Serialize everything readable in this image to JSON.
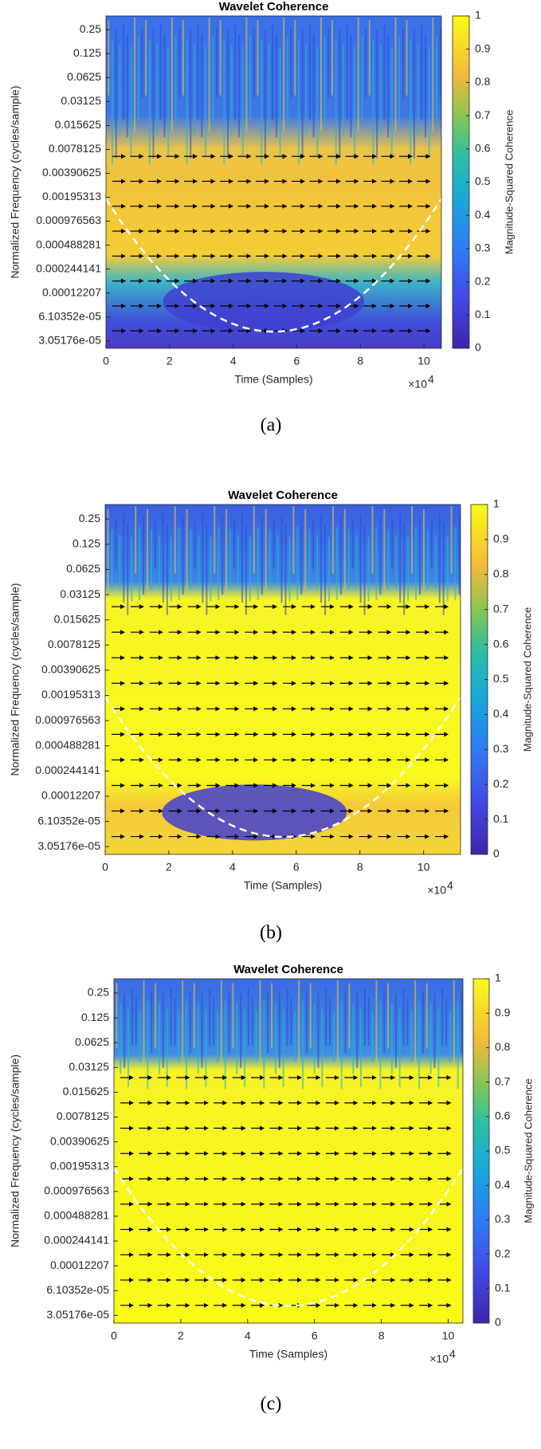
{
  "chart_data": [
    {
      "type": "heatmap",
      "title": "Wavelet Coherence",
      "caption": "(a)",
      "x_label": "Time (Samples)",
      "y_label": "Normalized Frequency  (cycles/sample)",
      "x_exponent_base": "×10",
      "x_exponent": 4,
      "xlim": [
        0,
        10.55
      ],
      "xticks": [
        0,
        2,
        4,
        6,
        8,
        10
      ],
      "y_scale": "log",
      "ylim": [
        2.46e-05,
        0.373
      ],
      "yticks": [
        0.25,
        0.125,
        0.0625,
        0.03125,
        0.015625,
        0.0078125,
        0.00390625,
        0.00195313,
        0.000976563,
        0.000488281,
        0.000244141,
        0.00012207,
        {
          "value": 6.10352e-05,
          "label": "6.10352e-05"
        },
        {
          "value": 3.05176e-05,
          "label": "3.05176e-05"
        }
      ],
      "colorbar": {
        "label": "Magnitude-Squared Coherence",
        "lim": [
          0,
          1
        ],
        "ticks": [
          0,
          0.1,
          0.2,
          0.3,
          0.4,
          0.5,
          0.6,
          0.7,
          0.8,
          0.9,
          1
        ]
      }
    },
    {
      "type": "heatmap",
      "title": "Wavelet Coherence",
      "caption": "(b)",
      "x_label": "Time (Samples)",
      "y_label": "Normalized Frequency  (cycles/sample)",
      "x_exponent_base": "×10",
      "x_exponent": 4,
      "xlim": [
        0,
        11.16
      ],
      "xticks": [
        0,
        2,
        4,
        6,
        8,
        10
      ],
      "y_scale": "log",
      "ylim": [
        2.46e-05,
        0.373
      ],
      "yticks": [
        0.25,
        0.125,
        0.0625,
        0.03125,
        0.015625,
        0.0078125,
        0.00390625,
        0.00195313,
        0.000976563,
        0.000488281,
        0.000244141,
        0.00012207,
        {
          "value": 6.10352e-05,
          "label": "6.10352e-05"
        },
        {
          "value": 3.05176e-05,
          "label": "3.05176e-05"
        }
      ],
      "colorbar": {
        "label": "Magnitude-Squared Coherence",
        "lim": [
          0,
          1
        ],
        "ticks": [
          0,
          0.1,
          0.2,
          0.3,
          0.4,
          0.5,
          0.6,
          0.7,
          0.8,
          0.9,
          1
        ]
      }
    },
    {
      "type": "heatmap",
      "title": "Wavelet Coherence",
      "caption": "(c)",
      "x_label": "Time (Samples)",
      "y_label": "Normalized Frequency  (cycles/sample)",
      "x_exponent_base": "×10",
      "x_exponent": 4,
      "xlim": [
        0,
        10.44
      ],
      "xticks": [
        0,
        2,
        4,
        6,
        8,
        10
      ],
      "y_scale": "log",
      "ylim": [
        2.46e-05,
        0.373
      ],
      "yticks": [
        0.25,
        0.125,
        0.0625,
        0.03125,
        0.015625,
        0.0078125,
        0.00390625,
        0.00195313,
        0.000976563,
        0.000488281,
        0.000244141,
        0.00012207,
        {
          "value": 6.10352e-05,
          "label": "6.10352e-05"
        },
        {
          "value": 3.05176e-05,
          "label": "3.05176e-05"
        }
      ],
      "colorbar": {
        "label": "Magnitude-Squared Coherence",
        "lim": [
          0,
          1
        ],
        "ticks": [
          0,
          0.1,
          0.2,
          0.3,
          0.4,
          0.5,
          0.6,
          0.7,
          0.8,
          0.9,
          1
        ]
      }
    }
  ]
}
